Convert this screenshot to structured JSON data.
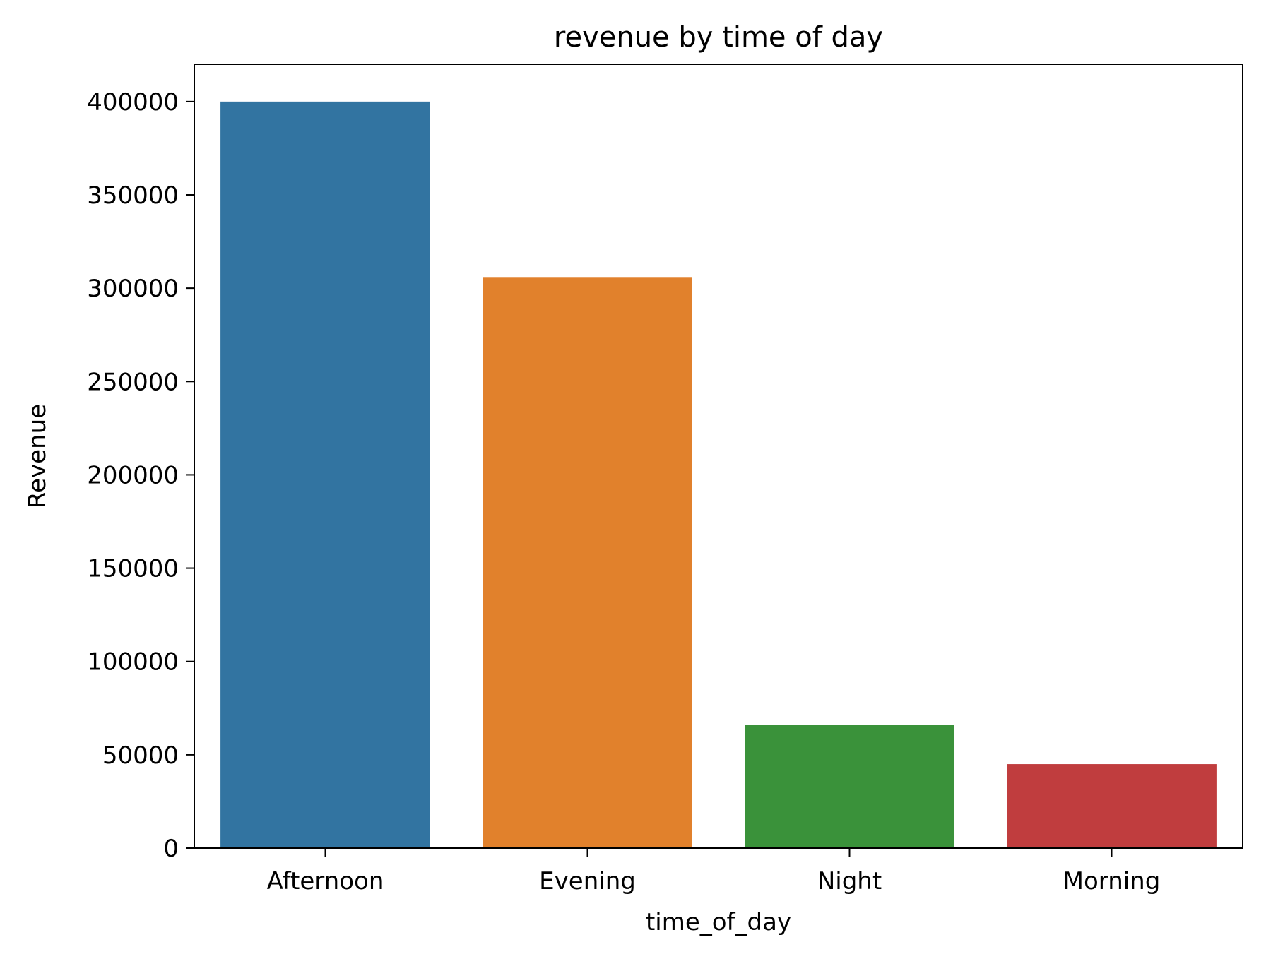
{
  "chart_data": {
    "type": "bar",
    "title": "revenue by time of day",
    "xlabel": "time_of_day",
    "ylabel": "Revenue",
    "categories": [
      "Afternoon",
      "Evening",
      "Night",
      "Morning"
    ],
    "values": [
      400000,
      306000,
      66000,
      45000
    ],
    "colors": [
      "#3274a1",
      "#e1812c",
      "#3a923a",
      "#c03d3e"
    ],
    "ylim": [
      0,
      420000
    ],
    "yticks": [
      0,
      50000,
      100000,
      150000,
      200000,
      250000,
      300000,
      350000,
      400000
    ],
    "ytick_labels": [
      "0",
      "50000",
      "100000",
      "150000",
      "200000",
      "250000",
      "300000",
      "350000",
      "400000"
    ],
    "grid": false,
    "legend": "none"
  }
}
